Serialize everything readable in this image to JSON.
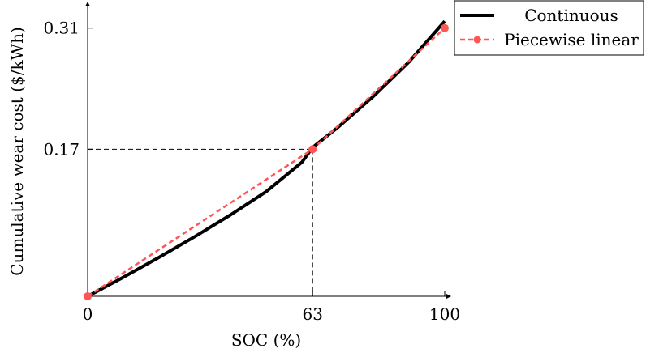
{
  "chart_data": {
    "type": "line",
    "title": "",
    "xlabel": "SOC (%)",
    "ylabel": "Cumulative wear cost ($/kWh)",
    "xlim": [
      0,
      100
    ],
    "ylim": [
      0,
      0.335
    ],
    "x_ticks": [
      {
        "value": 0,
        "label": "0"
      },
      {
        "value": 63,
        "label": "63"
      },
      {
        "value": 100,
        "label": "100"
      }
    ],
    "y_ticks": [
      {
        "value": 0.17,
        "label": "0.17"
      },
      {
        "value": 0.31,
        "label": "0.31"
      }
    ],
    "grid": false,
    "legend_position": "top-right",
    "reference_lines": {
      "x": 63,
      "y": 0.17,
      "style": "dashed"
    },
    "series": [
      {
        "name": "Continuous",
        "style": "solid",
        "color": "#000000",
        "x": [
          0,
          10,
          20,
          30,
          40,
          50,
          60,
          63,
          70,
          80,
          90,
          100
        ],
        "y": [
          0,
          0.022,
          0.045,
          0.069,
          0.094,
          0.121,
          0.155,
          0.172,
          0.195,
          0.231,
          0.271,
          0.318
        ]
      },
      {
        "name": "Piecewise linear",
        "style": "dashed",
        "color": "#ff5555",
        "marker": "circle",
        "x": [
          0,
          63,
          100
        ],
        "y": [
          0,
          0.17,
          0.31
        ]
      }
    ]
  }
}
